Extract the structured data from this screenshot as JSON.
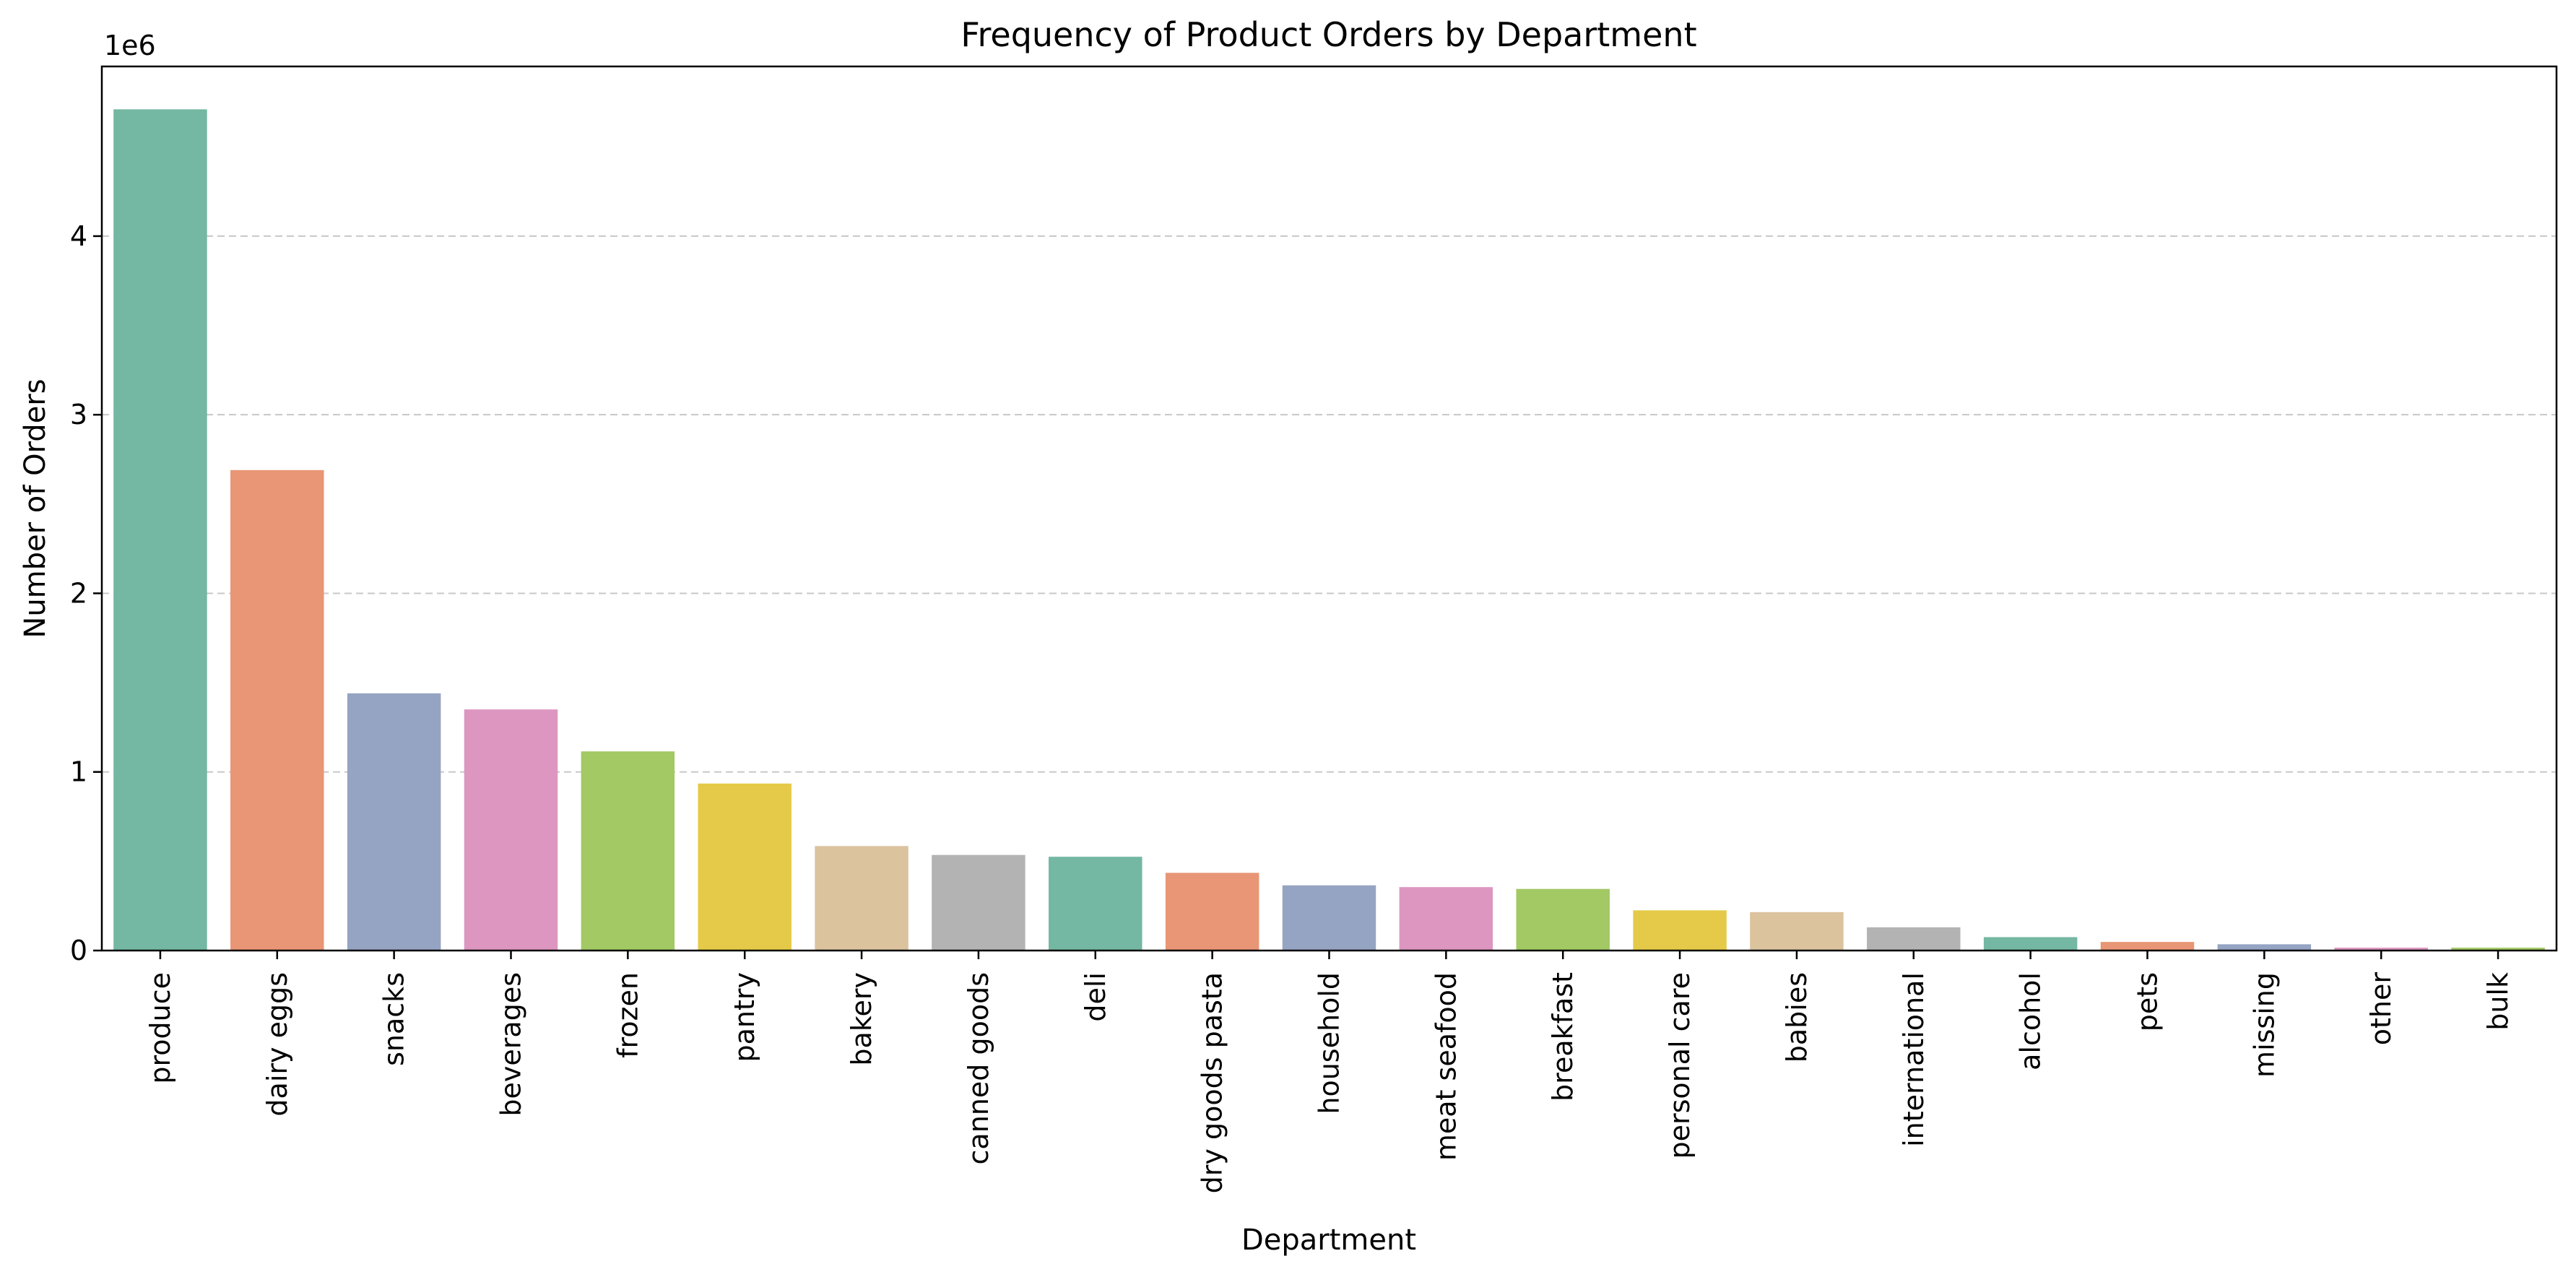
{
  "chart_data": {
    "type": "bar",
    "title": "Frequency of Product Orders by Department",
    "xlabel": "Department",
    "ylabel": "Number of Orders",
    "y_offset_label": "1e6",
    "ylim": [
      0,
      4950000
    ],
    "yticks": [
      0,
      1000000,
      2000000,
      3000000,
      4000000
    ],
    "ytick_labels": [
      "0",
      "1",
      "2",
      "3",
      "4"
    ],
    "grid": "y-dashed",
    "categories": [
      "produce",
      "dairy eggs",
      "snacks",
      "beverages",
      "frozen",
      "pantry",
      "bakery",
      "canned goods",
      "deli",
      "dry goods pasta",
      "household",
      "meat seafood",
      "breakfast",
      "personal care",
      "babies",
      "international",
      "alcohol",
      "pets",
      "missing",
      "other",
      "bulk"
    ],
    "values": [
      4710000,
      2690000,
      1440000,
      1350000,
      1115000,
      935000,
      585000,
      535000,
      525000,
      435000,
      365000,
      355000,
      345000,
      225000,
      215000,
      130000,
      75000,
      48000,
      35000,
      16000,
      16000
    ],
    "colors": [
      "#74b7a2",
      "#e89675",
      "#95a4c3",
      "#dc96c0",
      "#a2c964",
      "#e5ca49",
      "#dbc39e",
      "#b3b3b3",
      "#74b7a2",
      "#e89675",
      "#95a4c3",
      "#dc96c0",
      "#a2c964",
      "#e5ca49",
      "#dbc39e",
      "#b3b3b3",
      "#74b7a2",
      "#e89675",
      "#95a4c3",
      "#dc96c0",
      "#a2c964"
    ]
  }
}
